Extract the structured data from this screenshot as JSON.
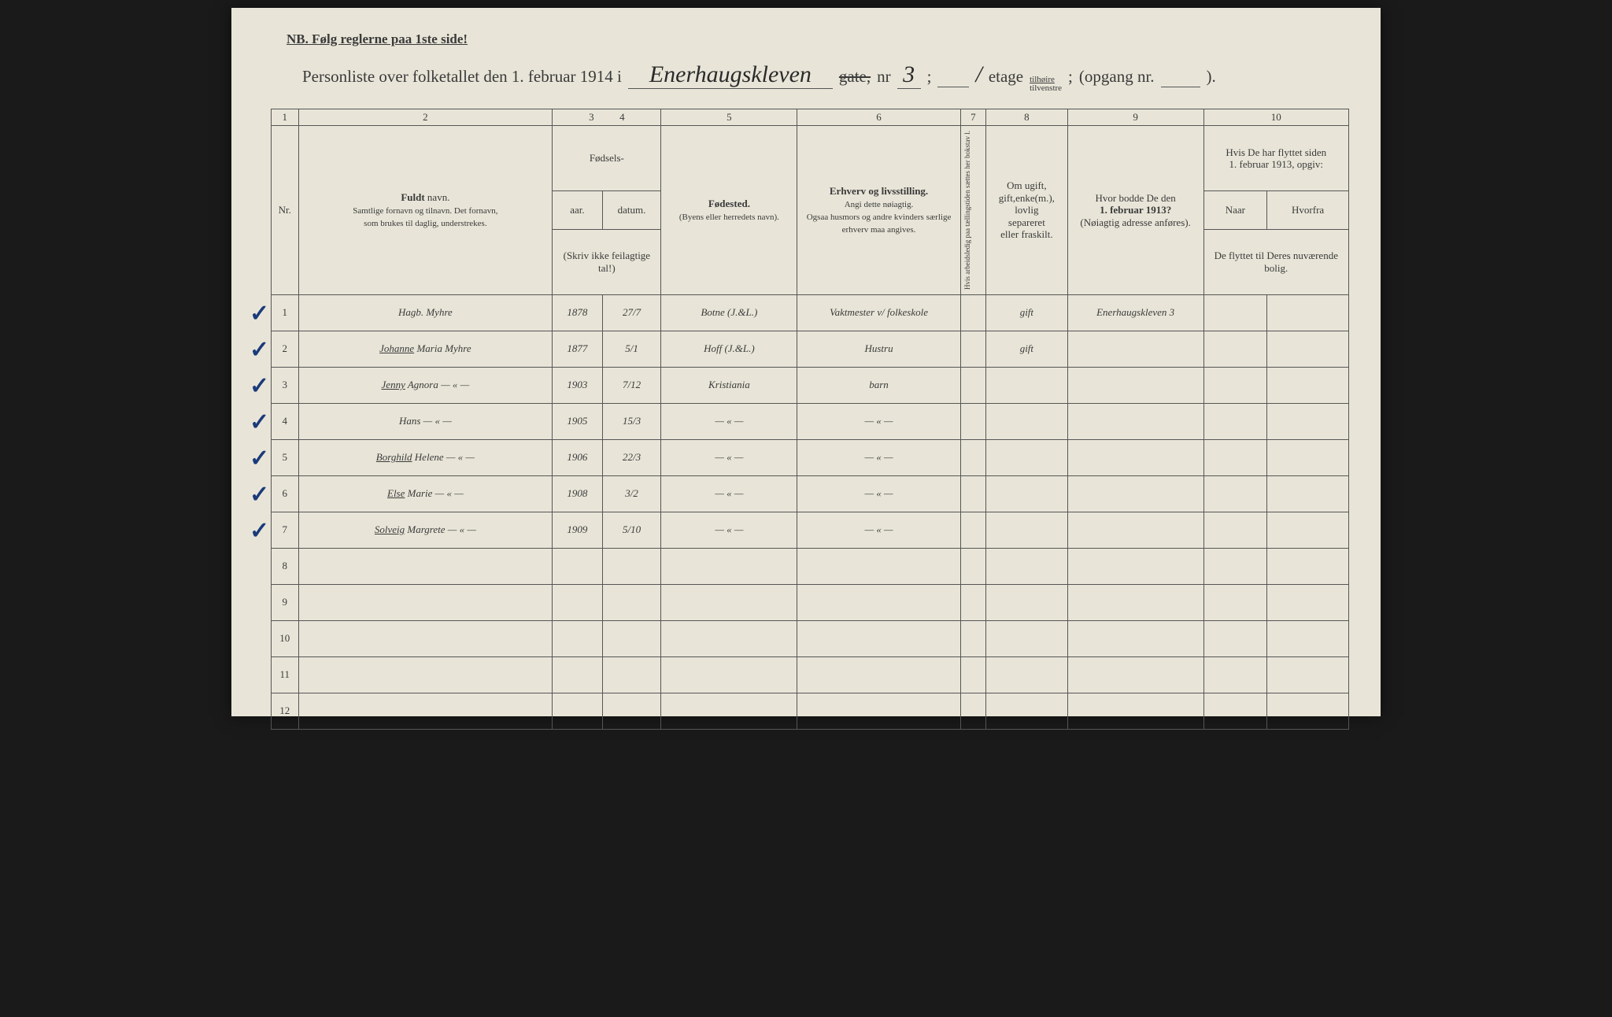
{
  "header": {
    "nb": "NB.   Følg reglerne paa 1ste side!",
    "title_prefix": "Personliste over folketallet den 1. februar 1914 i",
    "street_hw": "Enerhaugskleven",
    "gate_struck": "gate,",
    "nr_label": "nr",
    "nr_hw": "3",
    "semi1": ";",
    "slash": "/",
    "etage_label": "etage",
    "tilhoire": "tilhøire",
    "tilvenstre": "tilvenstre",
    "semi2": ";",
    "opgang": "(opgang nr.",
    "paren": ")."
  },
  "colnums": [
    "1",
    "2",
    "3",
    "4",
    "5",
    "6",
    "7",
    "8",
    "9",
    "10"
  ],
  "headers": {
    "nr": "Nr.",
    "fuldt": "Fuldt",
    "navn": " navn.",
    "name_sub1": "Samtlige fornavn og tilnavn.  Det fornavn,",
    "name_sub2": "som brukes til daglig, understrekes.",
    "fodsels": "Fødsels-",
    "aar": "aar.",
    "datum": "datum.",
    "skriv": "(Skriv ikke feilagtige tal!)",
    "fodested": "Fødested.",
    "fodested_sub": "(Byens eller herredets navn).",
    "erhverv": "Erhverv og livsstilling.",
    "erhverv_sub1": "Angi dette nøiagtig.",
    "erhverv_sub2": "Ogsaa husmors og andre kvinders særlige erhverv maa angives.",
    "col7": "Hvis arbeidsledig paa tællingstiden sættes her bokstav l.",
    "col8_1": "Om ugift,",
    "col8_2": "gift,enke(m.),",
    "col8_3": "lovlig",
    "col8_4": "separeret",
    "col8_5": "eller fraskilt.",
    "col9_1": "Hvor bodde De den",
    "col9_2": "1. februar 1913?",
    "col9_3": "(Nøiagtig adresse anføres).",
    "col10_1": "Hvis De har flyttet siden",
    "col10_2": "1. februar 1913, opgiv:",
    "naar": "Naar",
    "hvorfra": "Hvorfra",
    "col10_sub": "De flyttet til Deres nuværende bolig."
  },
  "rows": [
    {
      "n": "1",
      "check": true,
      "name": "Hagb. Myhre",
      "year": "1878",
      "date": "27/7",
      "place": "Botne (J.&L.)",
      "occ": "Vaktmester v/ folkeskole",
      "status": "gift",
      "prev": "Enerhaugskleven 3"
    },
    {
      "n": "2",
      "check": true,
      "name": "Johanne Maria   Myhre",
      "under": "Johanne",
      "year": "1877",
      "date": "5/1",
      "place": "Hoff (J.&L.)",
      "occ": "Hustru",
      "status": "gift",
      "prev": ""
    },
    {
      "n": "3",
      "check": true,
      "name": "Jenny Agnora   — « —",
      "under": "Jenny",
      "year": "1903",
      "date": "7/12",
      "place": "Kristiania",
      "occ": "barn",
      "status": "",
      "prev": ""
    },
    {
      "n": "4",
      "check": true,
      "name": "Hans          — « —",
      "year": "1905",
      "date": "15/3",
      "place": "— « —",
      "occ": "— « —",
      "status": "",
      "prev": ""
    },
    {
      "n": "5",
      "check": true,
      "name": "Borghild Helene  — « —",
      "under": "Borghild",
      "year": "1906",
      "date": "22/3",
      "place": "— « —",
      "occ": "— « —",
      "status": "",
      "prev": ""
    },
    {
      "n": "6",
      "check": true,
      "name": "Else Marie    — « —",
      "under": "Else",
      "year": "1908",
      "date": "3/2",
      "place": "— « —",
      "occ": "— « —",
      "status": "",
      "prev": ""
    },
    {
      "n": "7",
      "check": true,
      "name": "Solveig Margrete — « —",
      "under": "Solveig",
      "year": "1909",
      "date": "5/10",
      "place": "— « —",
      "occ": "— « —",
      "status": "",
      "prev": ""
    },
    {
      "n": "8"
    },
    {
      "n": "9"
    },
    {
      "n": "10"
    },
    {
      "n": "11"
    },
    {
      "n": "12"
    }
  ]
}
